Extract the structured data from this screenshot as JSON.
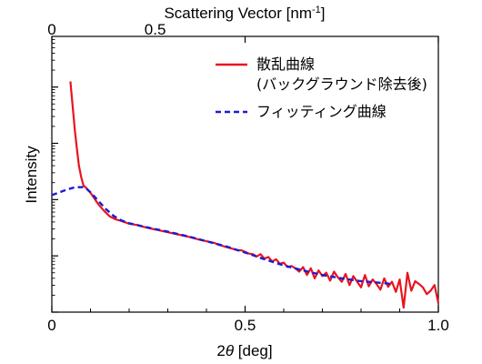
{
  "chart_data": {
    "type": "line",
    "xlabel_prefix": "2",
    "xlabel_theta": "θ",
    "xlabel_suffix": " [deg]",
    "ylabel": "Intensity",
    "top_axis_label": "Scattering Vector [nm",
    "top_axis_label_sup": "-1",
    "top_axis_label_end": "]",
    "xlim": [
      0,
      1.0
    ],
    "x_ticks": [
      0,
      0.5,
      1.0
    ],
    "x_tick_labels": [
      "0",
      "0.5",
      "1.0"
    ],
    "top_ticks": [
      0,
      0.5
    ],
    "top_tick_labels": [
      "0",
      "0.5"
    ],
    "top_axis_x_per_unit": 0.5347,
    "ylim": [
      -1.0,
      3.9
    ],
    "y_scale": "log",
    "y_tick_labels": [],
    "legend_position": "top-right",
    "series": [
      {
        "name_lines": [
          "散乱曲線",
          "(バックグラウンド除去後)"
        ],
        "color": "#e8141e",
        "style": "solid",
        "x": [
          0.048,
          0.052,
          0.056,
          0.06,
          0.065,
          0.07,
          0.076,
          0.082,
          0.09,
          0.1,
          0.11,
          0.12,
          0.135,
          0.15,
          0.165,
          0.18,
          0.2,
          0.22,
          0.24,
          0.26,
          0.28,
          0.3,
          0.32,
          0.34,
          0.36,
          0.38,
          0.4,
          0.42,
          0.43,
          0.44,
          0.45,
          0.46,
          0.47,
          0.48,
          0.49,
          0.5,
          0.51,
          0.52,
          0.53,
          0.54,
          0.55,
          0.56,
          0.57,
          0.58,
          0.59,
          0.6,
          0.61,
          0.62,
          0.63,
          0.64,
          0.65,
          0.66,
          0.67,
          0.68,
          0.69,
          0.7,
          0.71,
          0.72,
          0.73,
          0.74,
          0.75,
          0.76,
          0.77,
          0.78,
          0.79,
          0.8,
          0.81,
          0.82,
          0.83,
          0.84,
          0.85,
          0.86,
          0.87,
          0.88,
          0.89,
          0.9,
          0.91,
          0.92,
          0.93,
          0.94,
          0.95,
          0.96,
          0.97,
          0.98,
          0.99,
          1.0
        ],
        "y": [
          3.1,
          2.8,
          2.5,
          2.2,
          1.9,
          1.6,
          1.4,
          1.25,
          1.2,
          1.12,
          1.02,
          0.92,
          0.8,
          0.7,
          0.65,
          0.62,
          0.57,
          0.55,
          0.51,
          0.48,
          0.45,
          0.42,
          0.39,
          0.36,
          0.33,
          0.29,
          0.26,
          0.23,
          0.2,
          0.18,
          0.16,
          0.14,
          0.12,
          0.1,
          0.1,
          0.07,
          0.04,
          0.03,
          -0.01,
          0.03,
          -0.05,
          -0.02,
          -0.1,
          -0.06,
          -0.14,
          -0.12,
          -0.2,
          -0.18,
          -0.22,
          -0.28,
          -0.2,
          -0.34,
          -0.22,
          -0.4,
          -0.26,
          -0.36,
          -0.3,
          -0.44,
          -0.28,
          -0.38,
          -0.46,
          -0.32,
          -0.52,
          -0.36,
          -0.46,
          -0.56,
          -0.34,
          -0.54,
          -0.42,
          -0.5,
          -0.6,
          -0.4,
          -0.55,
          -0.46,
          -0.64,
          -0.42,
          -0.92,
          -0.3,
          -0.62,
          -0.45,
          -0.5,
          -0.56,
          -0.68,
          -0.62,
          -0.52,
          -0.84
        ]
      },
      {
        "name_lines": [
          "フィッティング曲線"
        ],
        "color": "#1c1cd6",
        "style": "dashed",
        "x": [
          0,
          0.02,
          0.04,
          0.06,
          0.08,
          0.09,
          0.1,
          0.12,
          0.14,
          0.16,
          0.18,
          0.2,
          0.25,
          0.3,
          0.35,
          0.4,
          0.45,
          0.5,
          0.55,
          0.6,
          0.65,
          0.7,
          0.75,
          0.8,
          0.85,
          0.88
        ],
        "y": [
          1.08,
          1.13,
          1.18,
          1.22,
          1.22,
          1.19,
          1.13,
          0.98,
          0.83,
          0.71,
          0.63,
          0.58,
          0.5,
          0.43,
          0.35,
          0.26,
          0.17,
          0.06,
          -0.06,
          -0.17,
          -0.26,
          -0.34,
          -0.4,
          -0.45,
          -0.48,
          -0.5
        ]
      }
    ]
  }
}
